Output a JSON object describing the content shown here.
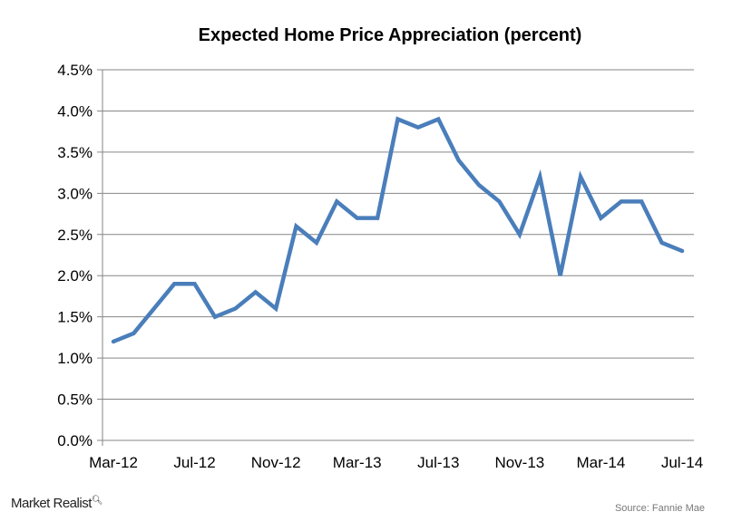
{
  "chart_data": {
    "type": "line",
    "title": "Expected Home Price Appreciation (percent)",
    "xlabel": "",
    "ylabel": "",
    "x": [
      "Mar-12",
      "Apr-12",
      "May-12",
      "Jun-12",
      "Jul-12",
      "Aug-12",
      "Sep-12",
      "Oct-12",
      "Nov-12",
      "Dec-12",
      "Jan-13",
      "Feb-13",
      "Mar-13",
      "Apr-13",
      "May-13",
      "Jun-13",
      "Jul-13",
      "Aug-13",
      "Sep-13",
      "Oct-13",
      "Nov-13",
      "Dec-13",
      "Jan-14",
      "Feb-14",
      "Mar-14",
      "Apr-14",
      "May-14",
      "Jun-14",
      "Jul-14"
    ],
    "series": [
      {
        "values": [
          1.2,
          1.3,
          1.6,
          1.9,
          1.9,
          1.5,
          1.6,
          1.8,
          1.6,
          2.6,
          2.4,
          2.9,
          2.7,
          2.7,
          3.9,
          3.8,
          3.9,
          3.4,
          3.1,
          2.9,
          2.5,
          3.2,
          2.0,
          3.2,
          2.7,
          2.9,
          2.9,
          2.4,
          2.3
        ],
        "color": "#4a7ebb"
      }
    ],
    "xtick_labels": [
      "Mar-12",
      "Jul-12",
      "Nov-12",
      "Mar-13",
      "Jul-13",
      "Nov-13",
      "Mar-14",
      "Jul-14"
    ],
    "ytick_labels": [
      "0.0%",
      "0.5%",
      "1.0%",
      "1.5%",
      "2.0%",
      "2.5%",
      "3.0%",
      "3.5%",
      "4.0%",
      "4.5%"
    ],
    "ylim": [
      0,
      4.5
    ],
    "grid": true,
    "legend": "none"
  },
  "footer": {
    "logo": "Market Realist",
    "source": "Source: Fannie Mae"
  }
}
